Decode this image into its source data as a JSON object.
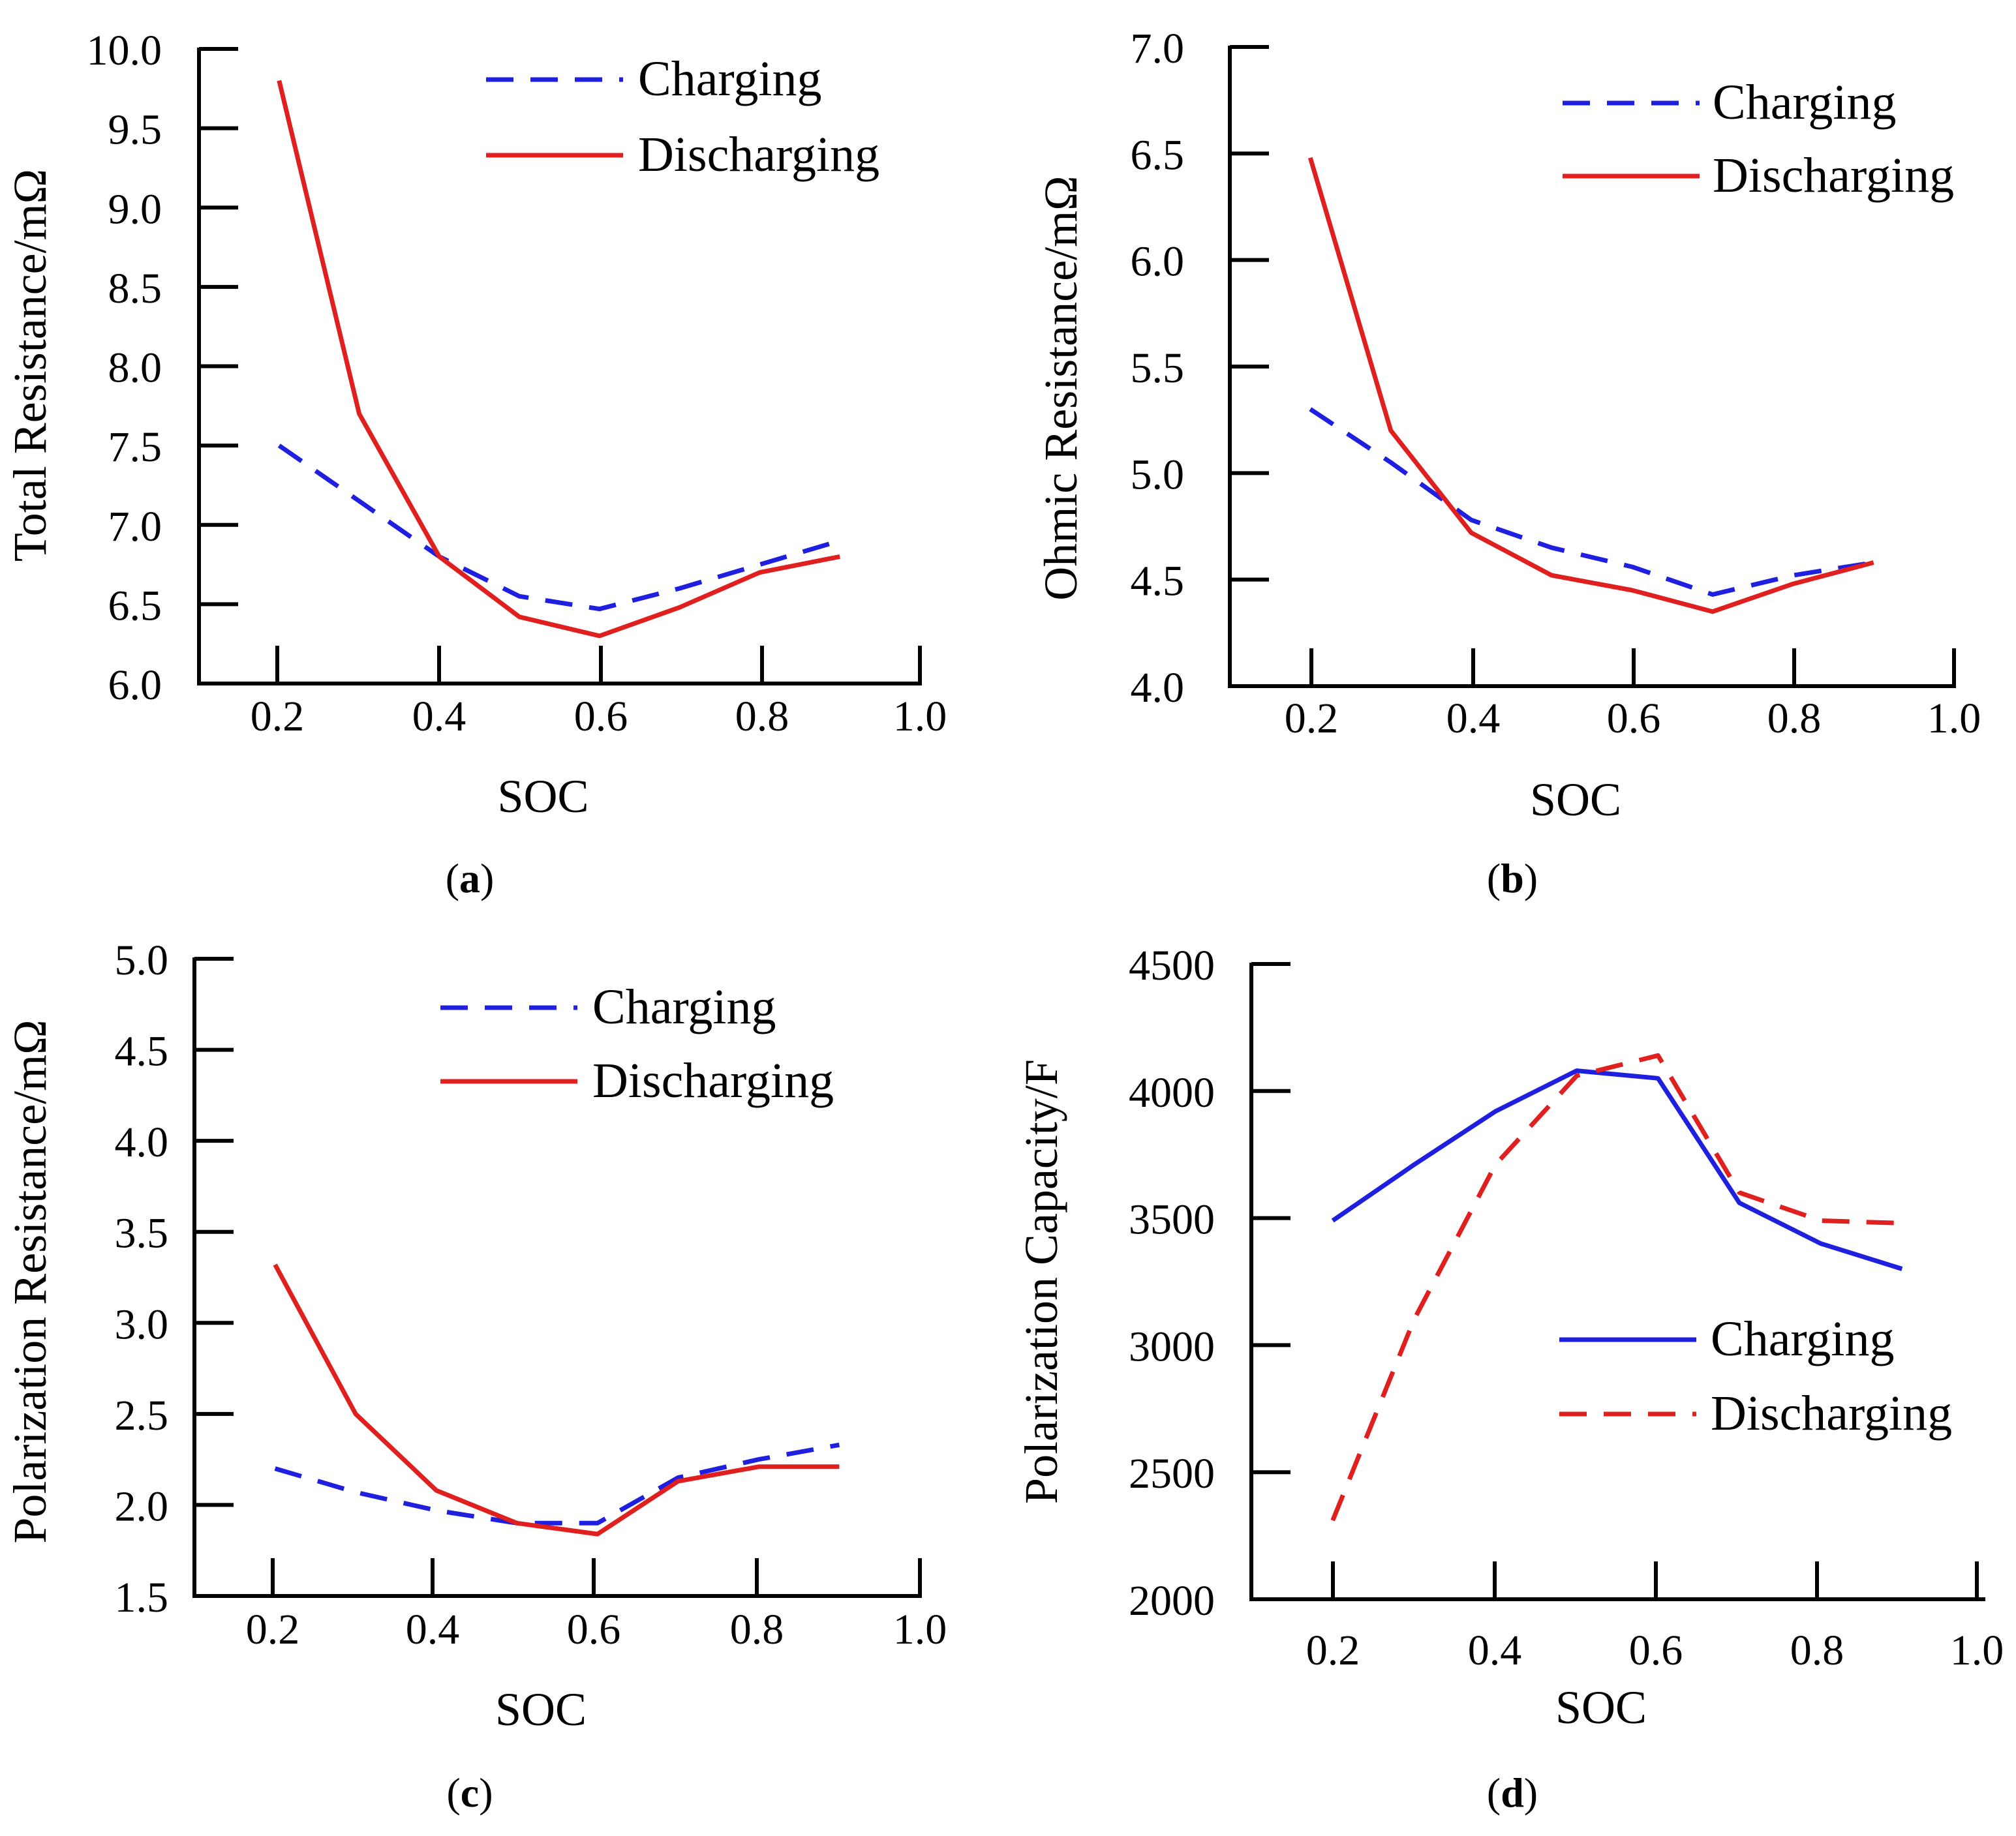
{
  "figure": {
    "panels": [
      "a",
      "b",
      "c",
      "d"
    ]
  },
  "colors": {
    "charging_blue": "#1f1fe0",
    "discharging_red": "#e01f1f",
    "axis": "#000000"
  },
  "chart_data": [
    {
      "id": "a",
      "type": "line",
      "caption_label": "a",
      "xlabel": "SOC",
      "ylabel": "Total Resistance/mΩ",
      "xlim": [
        0.1,
        1.0
      ],
      "ylim": [
        6.0,
        10.0
      ],
      "xticks": [
        0.2,
        0.4,
        0.6,
        0.8,
        1.0
      ],
      "xtick_labels": [
        "0.2",
        "0.4",
        "0.6",
        "0.8",
        "1.0"
      ],
      "yticks": [
        6.0,
        6.5,
        7.0,
        7.5,
        8.0,
        8.5,
        9.0,
        9.5,
        10.0
      ],
      "ytick_labels": [
        "6.0",
        "6.5",
        "7.0",
        "7.5",
        "8.0",
        "8.5",
        "9.0",
        "9.5",
        "10.0"
      ],
      "legend_position": "top-right",
      "series": [
        {
          "name": "Charging",
          "color": "#1f1fe0",
          "style": "dashed",
          "x": [
            0.2,
            0.3,
            0.4,
            0.5,
            0.6,
            0.7,
            0.8,
            0.9
          ],
          "y": [
            7.5,
            7.15,
            6.8,
            6.55,
            6.47,
            6.6,
            6.75,
            6.9
          ]
        },
        {
          "name": "Discharging",
          "color": "#e01f1f",
          "style": "solid",
          "x": [
            0.2,
            0.3,
            0.4,
            0.5,
            0.6,
            0.7,
            0.8,
            0.9
          ],
          "y": [
            9.8,
            7.7,
            6.8,
            6.42,
            6.3,
            6.48,
            6.7,
            6.8
          ]
        }
      ]
    },
    {
      "id": "b",
      "type": "line",
      "caption_label": "b",
      "xlabel": "SOC",
      "ylabel": "Ohmic Resistance/mΩ",
      "xlim": [
        0.1,
        1.0
      ],
      "ylim": [
        4.0,
        7.0
      ],
      "xticks": [
        0.2,
        0.4,
        0.6,
        0.8,
        1.0
      ],
      "xtick_labels": [
        "0.2",
        "0.4",
        "0.6",
        "0.8",
        "1.0"
      ],
      "yticks": [
        4.0,
        4.5,
        5.0,
        5.5,
        6.0,
        6.5,
        7.0
      ],
      "ytick_labels": [
        "4.0",
        "4.5",
        "5.0",
        "5.5",
        "6.0",
        "6.5",
        "7.0"
      ],
      "legend_position": "top-right",
      "series": [
        {
          "name": "Charging",
          "color": "#1f1fe0",
          "style": "dashed",
          "x": [
            0.2,
            0.3,
            0.4,
            0.5,
            0.6,
            0.7,
            0.8,
            0.9
          ],
          "y": [
            5.3,
            5.05,
            4.78,
            4.65,
            4.56,
            4.43,
            4.52,
            4.58
          ]
        },
        {
          "name": "Discharging",
          "color": "#e01f1f",
          "style": "solid",
          "x": [
            0.2,
            0.3,
            0.4,
            0.5,
            0.6,
            0.7,
            0.8,
            0.9
          ],
          "y": [
            6.48,
            5.2,
            4.72,
            4.52,
            4.45,
            4.35,
            4.48,
            4.58
          ]
        }
      ]
    },
    {
      "id": "c",
      "type": "line",
      "caption_label": "c",
      "xlabel": "SOC",
      "ylabel": "Polarization Resistance/mΩ",
      "xlim": [
        0.1,
        1.0
      ],
      "ylim": [
        1.5,
        5.0
      ],
      "xticks": [
        0.2,
        0.4,
        0.6,
        0.8,
        1.0
      ],
      "xtick_labels": [
        "0.2",
        "0.4",
        "0.6",
        "0.8",
        "1.0"
      ],
      "yticks": [
        1.5,
        2.0,
        2.5,
        3.0,
        3.5,
        4.0,
        4.5,
        5.0
      ],
      "ytick_labels": [
        "1.5",
        "2.0",
        "2.5",
        "3.0",
        "3.5",
        "4.0",
        "4.5",
        "5.0"
      ],
      "legend_position": "top-right",
      "series": [
        {
          "name": "Charging",
          "color": "#1f1fe0",
          "style": "dashed",
          "x": [
            0.2,
            0.3,
            0.4,
            0.5,
            0.6,
            0.7,
            0.8,
            0.9
          ],
          "y": [
            2.2,
            2.07,
            1.97,
            1.9,
            1.9,
            2.15,
            2.25,
            2.33
          ]
        },
        {
          "name": "Discharging",
          "color": "#e01f1f",
          "style": "solid",
          "x": [
            0.2,
            0.3,
            0.4,
            0.5,
            0.6,
            0.7,
            0.8,
            0.9
          ],
          "y": [
            3.32,
            2.5,
            2.08,
            1.9,
            1.84,
            2.13,
            2.21,
            2.21
          ]
        }
      ]
    },
    {
      "id": "d",
      "type": "line",
      "caption_label": "d",
      "xlabel": "SOC",
      "ylabel": "Polarization Capacity/F",
      "xlim": [
        0.1,
        1.0
      ],
      "ylim": [
        2000,
        4500
      ],
      "xticks": [
        0.2,
        0.4,
        0.6,
        0.8,
        1.0
      ],
      "xtick_labels": [
        "0.2",
        "0.4",
        "0.6",
        "0.8",
        "1.0"
      ],
      "yticks": [
        2000,
        2500,
        3000,
        3500,
        4000,
        4500
      ],
      "ytick_labels": [
        "2000",
        "2500",
        "3000",
        "3500",
        "4000",
        "4500"
      ],
      "legend_position": "center-right",
      "series": [
        {
          "name": "Charging",
          "color": "#1f1fe0",
          "style": "solid",
          "x": [
            0.2,
            0.3,
            0.4,
            0.5,
            0.6,
            0.7,
            0.8,
            0.9
          ],
          "y": [
            3490,
            3710,
            3920,
            4080,
            4050,
            3560,
            3400,
            3300
          ]
        },
        {
          "name": "Discharging",
          "color": "#e01f1f",
          "style": "dashed",
          "x": [
            0.2,
            0.3,
            0.4,
            0.5,
            0.6,
            0.7,
            0.8,
            0.9
          ],
          "y": [
            2310,
            3100,
            3710,
            4060,
            4140,
            3600,
            3490,
            3480
          ]
        }
      ]
    }
  ]
}
